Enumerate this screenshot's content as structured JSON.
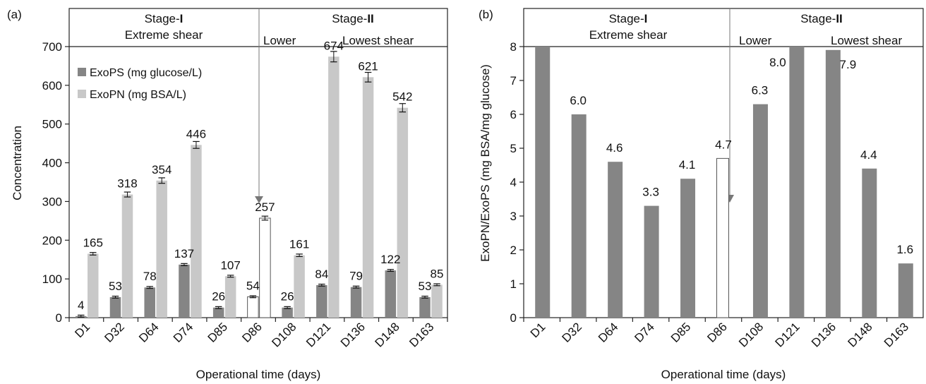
{
  "chart_data": [
    {
      "type": "bar",
      "panel_label": "(a)",
      "categories": [
        "D1",
        "D32",
        "D64",
        "D74",
        "D85",
        "D86",
        "D108",
        "D121",
        "D136",
        "D148",
        "D163"
      ],
      "series": [
        {
          "name": "ExoPS (mg glucose/L)",
          "values": [
            4,
            53,
            78,
            137,
            26,
            54,
            26,
            84,
            79,
            122,
            53
          ],
          "color": "#858585"
        },
        {
          "name": "ExoPN (mg BSA/L)",
          "values": [
            165,
            318,
            354,
            446,
            107,
            257,
            161,
            674,
            621,
            542,
            85
          ],
          "color": "#c8c8c8"
        }
      ],
      "data_labels": {
        "exops": [
          "4",
          "53",
          "78",
          "137",
          "26",
          "54",
          "26",
          "84",
          "79",
          "122",
          "53"
        ],
        "exopn": [
          "165",
          "318",
          "354",
          "446",
          "107",
          "257",
          "161",
          "674",
          "621",
          "542",
          "85"
        ]
      },
      "highlight_category": "D86",
      "error_bars": true,
      "xlabel": "Operational time (days)",
      "ylabel": "Concentration",
      "ylim": [
        0,
        700
      ],
      "yticks": [
        "0",
        "100",
        "200",
        "300",
        "400",
        "500",
        "600",
        "700"
      ],
      "legend_position": "top-left",
      "stage_labels": {
        "stage1": "Stage-",
        "stage1_numeral": "I",
        "stage1_sub": "Extreme shear",
        "stage2": "Stage-",
        "stage2_numeral": "II",
        "stage2_lower": "Lower",
        "stage2_lowest": "Lowest shear"
      }
    },
    {
      "type": "bar",
      "panel_label": "(b)",
      "categories": [
        "D1",
        "D32",
        "D64",
        "D74",
        "D85",
        "D86",
        "D108",
        "D121",
        "D136",
        "D148",
        "D163"
      ],
      "series": [
        {
          "name": "ExoPN/ExoPS",
          "values": [
            8,
            6.0,
            4.6,
            3.3,
            4.1,
            4.7,
            6.3,
            8.0,
            7.9,
            4.4,
            1.6
          ],
          "color": "#858585"
        }
      ],
      "data_labels": [
        "",
        "6.0",
        "4.6",
        "3.3",
        "4.1",
        "4.7",
        "6.3",
        "8.0",
        "7.9",
        "4.4",
        "1.6"
      ],
      "highlight_category": "D86",
      "xlabel": "Operational time (days)",
      "ylabel": "ExoPN/ExoPS (mg BSA/mg glucose)",
      "ylim": [
        0,
        8
      ],
      "yticks": [
        "0",
        "1",
        "2",
        "3",
        "4",
        "5",
        "6",
        "7",
        "8"
      ],
      "stage_labels": {
        "stage1": "Stage-",
        "stage1_numeral": "I",
        "stage1_sub": "Extreme shear",
        "stage2": "Stage-",
        "stage2_numeral": "II",
        "stage2_lower": "Lower",
        "stage2_lowest": "Lowest shear"
      }
    }
  ]
}
